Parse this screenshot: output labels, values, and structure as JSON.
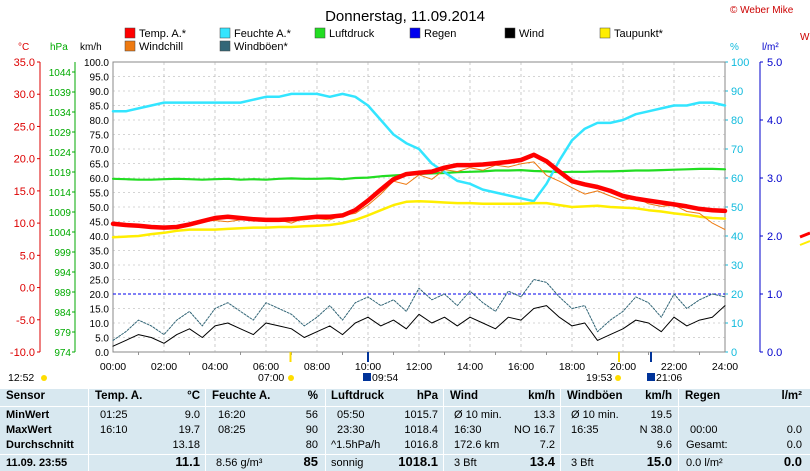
{
  "title": "Donnerstag, 11.09.2014",
  "copyright": "© Weber Mike",
  "copyright_right": "W",
  "axis_units": {
    "temp": "°C",
    "pressure": "hPa",
    "wind": "km/h",
    "humidity": "%",
    "rain": "l/m²"
  },
  "legend": [
    {
      "label": "Temp. A.*",
      "color": "#ff0000"
    },
    {
      "label": "Feuchte A.*",
      "color": "#33e5ff"
    },
    {
      "label": "Luftdruck",
      "color": "#22dd22"
    },
    {
      "label": "Regen",
      "color": "#0000ee"
    },
    {
      "label": "Wind",
      "color": "#000000"
    },
    {
      "label": "Taupunkt*",
      "color": "#ffee00"
    },
    {
      "label": "Windchill",
      "color": "#ee7a11"
    },
    {
      "label": "Windböen*",
      "color": "#336677"
    }
  ],
  "chart_data": {
    "type": "line",
    "x_range": [
      "00:00",
      "24:00"
    ],
    "x_ticks": [
      "00:00",
      "02:00",
      "04:00",
      "06:00",
      "08:00",
      "10:00",
      "12:00",
      "14:00",
      "16:00",
      "18:00",
      "20:00",
      "22:00",
      "24:00"
    ],
    "x_hours": [
      0,
      0.5,
      1,
      1.5,
      2,
      2.5,
      3,
      3.5,
      4,
      4.5,
      5,
      5.5,
      6,
      6.5,
      7,
      7.5,
      8,
      8.5,
      9,
      9.5,
      10,
      10.5,
      11,
      11.5,
      12,
      12.5,
      13,
      13.5,
      14,
      14.5,
      15,
      15.5,
      16,
      16.5,
      17,
      17.5,
      18,
      18.5,
      19,
      19.5,
      20,
      20.5,
      21,
      21.5,
      22,
      22.5,
      23,
      23.5,
      24
    ],
    "temp_ticks": [
      "35.0",
      "30.0",
      "25.0",
      "20.0",
      "15.0",
      "10.0",
      "5.0",
      "0.0",
      "-5.0",
      "-10.0"
    ],
    "temp_range": [
      -10,
      35
    ],
    "pressure_ticks": [
      "1044",
      "1039",
      "1034",
      "1029",
      "1024",
      "1019",
      "1014",
      "1009",
      "1004",
      "999",
      "994",
      "989",
      "984",
      "979",
      "974"
    ],
    "pressure_range": [
      974,
      1044
    ],
    "wind_ticks": [
      "100.0",
      "95.0",
      "90.0",
      "85.0",
      "80.0",
      "75.0",
      "70.0",
      "65.0",
      "60.0",
      "55.0",
      "50.0",
      "45.0",
      "40.0",
      "35.0",
      "30.0",
      "25.0",
      "20.0",
      "15.0",
      "10.0",
      "5.0",
      "0.0"
    ],
    "wind_range": [
      0,
      100
    ],
    "humidity_ticks": [
      "100",
      "90",
      "80",
      "70",
      "60",
      "50",
      "40",
      "30",
      "20",
      "10",
      "0"
    ],
    "humidity_range": [
      0,
      100
    ],
    "rain_ticks": [
      "5.0",
      "4.0",
      "3.0",
      "2.0",
      "1.0",
      "0.0"
    ],
    "rain_range": [
      0,
      5
    ],
    "series": [
      {
        "name": "Temp. A.*",
        "axis": "temp",
        "color": "#ff0000",
        "values": [
          9.9,
          9.7,
          9.6,
          9.4,
          9.3,
          9.4,
          9.8,
          10.3,
          10.8,
          11.0,
          10.8,
          10.6,
          10.5,
          10.5,
          10.6,
          10.8,
          11.0,
          11.0,
          11.2,
          12.0,
          13.5,
          15.2,
          16.8,
          17.6,
          17.8,
          18.0,
          18.6,
          19.0,
          19.0,
          19.1,
          19.3,
          19.5,
          19.8,
          20.6,
          19.6,
          18.0,
          16.5,
          16.0,
          15.6,
          15.0,
          14.2,
          13.8,
          13.5,
          13.2,
          12.9,
          12.6,
          12.2,
          12.0,
          11.9
        ]
      },
      {
        "name": "Windchill",
        "axis": "temp",
        "color": "#ee7a11",
        "values": [
          9.9,
          9.7,
          9.6,
          9.4,
          9.3,
          9.4,
          9.8,
          10.3,
          10.4,
          10.2,
          10.5,
          10.6,
          10.3,
          10.5,
          10.0,
          10.8,
          10.7,
          10.5,
          11.2,
          11.5,
          12.8,
          14.5,
          16.5,
          16.0,
          17.5,
          16.8,
          18.3,
          18.0,
          18.6,
          18.2,
          19.0,
          18.7,
          19.2,
          19.5,
          17.4,
          16.5,
          15.5,
          14.5,
          15.0,
          14.2,
          13.5,
          14.0,
          13.0,
          12.6,
          12.8,
          11.8,
          11.5,
          10.0,
          9.0
        ]
      },
      {
        "name": "Taupunkt*",
        "axis": "temp",
        "color": "#ffee00",
        "values": [
          7.8,
          7.9,
          8.0,
          8.3,
          8.5,
          8.8,
          9.0,
          9.0,
          9.0,
          9.1,
          9.2,
          9.3,
          9.3,
          9.4,
          9.4,
          9.5,
          9.6,
          9.7,
          10.0,
          10.5,
          11.2,
          12.0,
          12.8,
          13.3,
          13.4,
          13.3,
          13.2,
          13.1,
          13.1,
          13.0,
          13.0,
          13.0,
          13.0,
          13.1,
          13.1,
          12.8,
          12.5,
          12.6,
          12.7,
          12.5,
          12.4,
          12.3,
          12.0,
          11.8,
          11.5,
          11.3,
          11.0,
          10.8,
          10.7
        ]
      },
      {
        "name": "Feuchte A.*",
        "axis": "humidity",
        "color": "#33e5ff",
        "values": [
          83,
          83,
          84,
          85,
          86,
          86,
          86,
          86,
          86,
          86,
          86,
          87,
          88,
          88,
          89,
          89,
          89,
          88,
          89,
          88,
          85,
          80,
          75,
          72,
          70,
          65,
          62,
          59,
          58,
          56,
          55,
          54,
          53,
          52,
          58,
          66,
          73,
          77,
          79,
          79,
          80,
          82,
          83,
          84,
          85,
          85,
          86,
          86,
          85
        ]
      },
      {
        "name": "Luftdruck",
        "axis": "pressure",
        "color": "#22dd22",
        "values": [
          1015.8,
          1015.7,
          1015.6,
          1015.6,
          1015.7,
          1015.8,
          1015.7,
          1015.6,
          1015.7,
          1015.8,
          1015.6,
          1015.7,
          1015.6,
          1015.8,
          1015.9,
          1015.8,
          1015.8,
          1015.9,
          1015.7,
          1016.0,
          1016.1,
          1016.4,
          1016.6,
          1016.8,
          1017.0,
          1017.1,
          1017.2,
          1017.4,
          1017.5,
          1017.6,
          1017.8,
          1017.8,
          1017.9,
          1017.7,
          1017.6,
          1017.4,
          1017.5,
          1017.5,
          1017.6,
          1017.6,
          1017.7,
          1017.8,
          1017.8,
          1017.9,
          1018.0,
          1018.1,
          1018.2,
          1018.2,
          1018.1
        ]
      },
      {
        "name": "Wind",
        "axis": "wind",
        "color": "#000000",
        "values": [
          2,
          4,
          6,
          5,
          3,
          6,
          8,
          5,
          9,
          10,
          8,
          6,
          10,
          9,
          8,
          5,
          7,
          9,
          6,
          10,
          12,
          9,
          11,
          8,
          13,
          10,
          12,
          9,
          12,
          10,
          8,
          12,
          11,
          15,
          16,
          12,
          9,
          10,
          4,
          6,
          8,
          11,
          10,
          7,
          12,
          9,
          11,
          12,
          16
        ]
      },
      {
        "name": "Windböen*",
        "axis": "wind",
        "color": "#336677",
        "values": [
          4,
          7,
          11,
          9,
          6,
          11,
          14,
          9,
          15,
          17,
          14,
          11,
          17,
          15,
          13,
          9,
          12,
          16,
          11,
          17,
          19,
          16,
          18,
          14,
          22,
          18,
          20,
          16,
          21,
          17,
          14,
          21,
          19,
          25,
          24,
          19,
          15,
          16,
          7,
          11,
          14,
          19,
          17,
          12,
          20,
          15,
          18,
          20,
          19
        ]
      }
    ],
    "rain_level_mm": 0.0
  },
  "time_markers": {
    "left": "12:52",
    "sunrise": "07:00",
    "moonset": "09:54",
    "sunset": "19:53",
    "moonrise": "21:06"
  },
  "table": {
    "row_labels": [
      "Sensor",
      "MinWert",
      "MaxWert",
      "Durchschnitt"
    ],
    "current_label": "11.09.  23:55",
    "headers": {
      "temp": {
        "label": "Temp. A.",
        "unit": "°C"
      },
      "hum": {
        "label": "Feuchte A.",
        "unit": "%"
      },
      "press": {
        "label": "Luftdruck",
        "unit": "hPa"
      },
      "wind": {
        "label": "Wind",
        "unit": "km/h"
      },
      "gust": {
        "label": "Windböen",
        "unit": "km/h"
      },
      "rain": {
        "label": "Regen",
        "unit": "l/m²"
      }
    },
    "temp": {
      "min_time": "01:25",
      "min": "9.0",
      "max_time": "16:10",
      "max": "19.7",
      "avg": "13.18",
      "current": "11.1"
    },
    "hum": {
      "min_time": "16:20",
      "min": "56",
      "max_time": "08:25",
      "max": "90",
      "avg": "80",
      "extra": "8.56 g/m³",
      "current": "85"
    },
    "press": {
      "min_time": "05:50",
      "min": "1015.7",
      "max_time": "23:30",
      "max": "1018.4",
      "trend": "^1.5hPa/h",
      "avg": "1016.8",
      "state": "sonnig",
      "current": "1018.1"
    },
    "wind": {
      "r1_label": "Ø 10 min.",
      "r1_val": "13.3",
      "r2_time": "16:30",
      "r2_val": "NO 16.7",
      "r3_label": "172.6 km",
      "r3_val": "7.2",
      "r4_label": "3 Bft",
      "current": "13.4"
    },
    "gust": {
      "r1_label": "Ø 10 min.",
      "r1_val": "19.5",
      "r2_time": "16:35",
      "r2_val": "N 38.0",
      "r3_val": "9.6",
      "r4_label": "3 Bft",
      "current": "15.0"
    },
    "rain": {
      "r2_time": "00:00",
      "r2_val": "0.0",
      "r3_label": "Gesamt:",
      "r3_val": "0.0",
      "r4_label": "0.0 l/m²",
      "current": "0.0"
    }
  }
}
